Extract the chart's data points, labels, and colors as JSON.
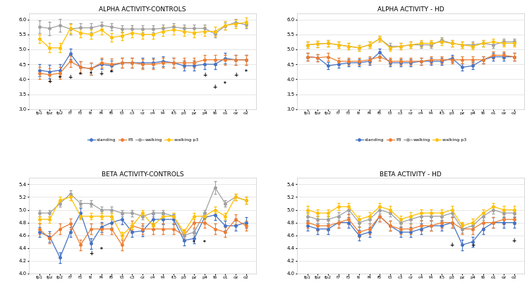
{
  "x_labels": [
    "fp1",
    "fpz",
    "fp2",
    "f7",
    "f3",
    "fz",
    "f4",
    "f8",
    "t3",
    "c3",
    "cz",
    "c4",
    "t4",
    "it5",
    "p3",
    "pz",
    "p4",
    "t6",
    "o1",
    "oz",
    "o2"
  ],
  "titles": [
    "ALPHA ACTIVITY-CONTROLS",
    "ALPHA ACTIVITY - HD",
    "BETA ACTIVITY-CONTROLS",
    "BETA ACTIVITY - HD"
  ],
  "legend_labels": [
    "standing",
    "P3",
    "walking",
    "walking p3"
  ],
  "colors": {
    "standing": "#4472c4",
    "P3": "#ed7d31",
    "walking": "#a0a0a0",
    "walking_p3": "#ffc000"
  },
  "alpha_controls": {
    "standing": [
      4.3,
      4.25,
      4.3,
      4.85,
      4.4,
      4.35,
      4.5,
      4.45,
      4.55,
      4.55,
      4.55,
      4.55,
      4.6,
      4.55,
      4.45,
      4.45,
      4.5,
      4.5,
      4.7,
      4.65,
      4.65
    ],
    "P3": [
      4.2,
      4.15,
      4.2,
      4.6,
      4.4,
      4.35,
      4.55,
      4.5,
      4.55,
      4.55,
      4.5,
      4.5,
      4.55,
      4.55,
      4.55,
      4.55,
      4.65,
      4.65,
      4.65,
      4.65,
      4.65
    ],
    "walking": [
      5.75,
      5.7,
      5.8,
      5.68,
      5.72,
      5.72,
      5.8,
      5.75,
      5.68,
      5.68,
      5.68,
      5.68,
      5.7,
      5.75,
      5.7,
      5.7,
      5.7,
      5.52,
      5.78,
      5.9,
      5.82
    ],
    "walking_p3": [
      5.35,
      5.05,
      5.05,
      5.7,
      5.55,
      5.5,
      5.65,
      5.4,
      5.45,
      5.55,
      5.5,
      5.5,
      5.6,
      5.65,
      5.6,
      5.55,
      5.6,
      5.6,
      5.8,
      5.85,
      5.9
    ],
    "standing_err": [
      0.2,
      0.22,
      0.2,
      0.18,
      0.2,
      0.2,
      0.17,
      0.18,
      0.17,
      0.17,
      0.17,
      0.17,
      0.17,
      0.17,
      0.17,
      0.17,
      0.17,
      0.17,
      0.17,
      0.17,
      0.17
    ],
    "P3_err": [
      0.2,
      0.22,
      0.2,
      0.18,
      0.2,
      0.2,
      0.17,
      0.18,
      0.17,
      0.17,
      0.17,
      0.17,
      0.17,
      0.17,
      0.17,
      0.17,
      0.17,
      0.17,
      0.17,
      0.17,
      0.17
    ],
    "walking_err": [
      0.22,
      0.22,
      0.22,
      0.18,
      0.15,
      0.15,
      0.12,
      0.12,
      0.12,
      0.12,
      0.12,
      0.12,
      0.12,
      0.12,
      0.12,
      0.12,
      0.12,
      0.12,
      0.12,
      0.12,
      0.12
    ],
    "walking_p3_err": [
      0.15,
      0.15,
      0.15,
      0.15,
      0.15,
      0.15,
      0.15,
      0.15,
      0.15,
      0.15,
      0.15,
      0.15,
      0.15,
      0.15,
      0.15,
      0.15,
      0.15,
      0.15,
      0.15,
      0.15,
      0.15
    ],
    "annotations": [
      {
        "xi": 1,
        "y": 3.82,
        "text": "+"
      },
      {
        "xi": 2,
        "y": 3.92,
        "text": "*"
      },
      {
        "xi": 3,
        "y": 3.97,
        "text": "+"
      },
      {
        "xi": 4,
        "y": 4.02,
        "text": "*"
      },
      {
        "xi": 5,
        "y": 4.06,
        "text": "*"
      },
      {
        "xi": 6,
        "y": 4.08,
        "text": "+"
      },
      {
        "xi": 7,
        "y": 4.1,
        "text": "*"
      },
      {
        "xi": 16,
        "y": 4.02,
        "text": "+"
      },
      {
        "xi": 17,
        "y": 3.62,
        "text": "+"
      },
      {
        "xi": 18,
        "y": 3.72,
        "text": "*"
      },
      {
        "xi": 19,
        "y": 4.02,
        "text": "+"
      },
      {
        "xi": 20,
        "y": 4.12,
        "text": "*"
      }
    ]
  },
  "alpha_hd": {
    "standing": [
      4.75,
      4.72,
      4.45,
      4.5,
      4.55,
      4.55,
      4.6,
      4.9,
      4.55,
      4.55,
      4.55,
      4.6,
      4.6,
      4.6,
      4.7,
      4.4,
      4.45,
      4.65,
      4.75,
      4.75,
      4.75
    ],
    "P3": [
      4.75,
      4.72,
      4.75,
      4.6,
      4.6,
      4.6,
      4.65,
      4.75,
      4.6,
      4.6,
      4.6,
      4.6,
      4.65,
      4.65,
      4.65,
      4.65,
      4.65,
      4.65,
      4.8,
      4.8,
      4.75
    ],
    "walking": [
      5.15,
      5.18,
      5.2,
      5.15,
      5.1,
      5.05,
      5.15,
      5.35,
      5.1,
      5.1,
      5.15,
      5.15,
      5.15,
      5.3,
      5.2,
      5.15,
      5.15,
      5.2,
      5.15,
      5.25,
      5.25
    ],
    "walking_p3": [
      5.15,
      5.18,
      5.2,
      5.15,
      5.1,
      5.05,
      5.15,
      5.35,
      5.05,
      5.1,
      5.15,
      5.2,
      5.2,
      5.25,
      5.2,
      5.15,
      5.1,
      5.2,
      5.25,
      5.2,
      5.2
    ],
    "standing_err": [
      0.12,
      0.12,
      0.12,
      0.12,
      0.12,
      0.12,
      0.12,
      0.12,
      0.12,
      0.12,
      0.12,
      0.12,
      0.12,
      0.12,
      0.12,
      0.12,
      0.12,
      0.12,
      0.12,
      0.12,
      0.12
    ],
    "P3_err": [
      0.12,
      0.12,
      0.12,
      0.12,
      0.12,
      0.12,
      0.12,
      0.12,
      0.12,
      0.12,
      0.12,
      0.12,
      0.12,
      0.12,
      0.12,
      0.12,
      0.12,
      0.12,
      0.12,
      0.12,
      0.12
    ],
    "walking_err": [
      0.1,
      0.1,
      0.1,
      0.1,
      0.1,
      0.1,
      0.1,
      0.1,
      0.1,
      0.1,
      0.1,
      0.1,
      0.1,
      0.1,
      0.1,
      0.1,
      0.1,
      0.1,
      0.1,
      0.1,
      0.1
    ],
    "walking_p3_err": [
      0.1,
      0.1,
      0.1,
      0.1,
      0.1,
      0.1,
      0.1,
      0.1,
      0.1,
      0.1,
      0.1,
      0.1,
      0.1,
      0.1,
      0.1,
      0.1,
      0.1,
      0.1,
      0.1,
      0.1,
      0.1
    ],
    "annotations": []
  },
  "beta_controls": {
    "standing": [
      4.65,
      4.58,
      4.25,
      4.65,
      4.95,
      4.47,
      4.73,
      4.8,
      4.85,
      4.65,
      4.67,
      4.85,
      4.85,
      4.85,
      4.52,
      4.55,
      4.88,
      4.92,
      4.75,
      4.75,
      4.8
    ],
    "P3": [
      4.7,
      4.55,
      4.7,
      4.78,
      4.45,
      4.7,
      4.7,
      4.7,
      4.45,
      4.75,
      4.7,
      4.7,
      4.7,
      4.7,
      4.6,
      4.8,
      4.8,
      4.7,
      4.65,
      4.85,
      4.75
    ],
    "walking": [
      4.95,
      4.95,
      5.1,
      5.25,
      5.1,
      5.1,
      5.0,
      5.0,
      4.95,
      4.95,
      4.9,
      4.95,
      4.95,
      4.9,
      4.6,
      4.65,
      4.95,
      5.35,
      5.1,
      5.2,
      5.15
    ],
    "walking_p3": [
      4.85,
      4.85,
      5.15,
      5.2,
      4.9,
      4.9,
      4.9,
      4.9,
      4.6,
      4.75,
      4.95,
      4.75,
      4.9,
      4.9,
      4.65,
      4.9,
      4.9,
      5.0,
      4.9,
      5.2,
      5.15
    ],
    "standing_err": [
      0.08,
      0.08,
      0.08,
      0.08,
      0.08,
      0.08,
      0.08,
      0.08,
      0.08,
      0.08,
      0.08,
      0.08,
      0.08,
      0.08,
      0.08,
      0.08,
      0.08,
      0.08,
      0.08,
      0.08,
      0.08
    ],
    "P3_err": [
      0.08,
      0.08,
      0.08,
      0.08,
      0.08,
      0.08,
      0.08,
      0.08,
      0.08,
      0.08,
      0.08,
      0.08,
      0.08,
      0.08,
      0.08,
      0.08,
      0.08,
      0.08,
      0.08,
      0.08,
      0.08
    ],
    "walking_err": [
      0.05,
      0.05,
      0.05,
      0.05,
      0.05,
      0.05,
      0.05,
      0.05,
      0.05,
      0.05,
      0.05,
      0.05,
      0.05,
      0.05,
      0.05,
      0.05,
      0.05,
      0.1,
      0.05,
      0.05,
      0.05
    ],
    "walking_p3_err": [
      0.05,
      0.05,
      0.05,
      0.05,
      0.05,
      0.05,
      0.05,
      0.05,
      0.05,
      0.05,
      0.05,
      0.05,
      0.05,
      0.05,
      0.05,
      0.05,
      0.05,
      0.05,
      0.05,
      0.05,
      0.05
    ],
    "annotations": [
      {
        "xi": 5,
        "y": 4.26,
        "text": "+"
      },
      {
        "xi": 6,
        "y": 4.32,
        "text": "*"
      },
      {
        "xi": 15,
        "y": 4.43,
        "text": "*"
      },
      {
        "xi": 16,
        "y": 4.43,
        "text": "*"
      },
      {
        "xi": 20,
        "y": 4.68,
        "text": "*"
      }
    ]
  },
  "beta_hd": {
    "standing": [
      4.75,
      4.7,
      4.7,
      4.8,
      4.8,
      4.6,
      4.65,
      4.9,
      4.75,
      4.65,
      4.65,
      4.7,
      4.75,
      4.75,
      4.8,
      4.45,
      4.5,
      4.7,
      4.8,
      4.8,
      4.8
    ],
    "P3": [
      4.8,
      4.75,
      4.75,
      4.8,
      4.85,
      4.65,
      4.7,
      4.9,
      4.75,
      4.7,
      4.7,
      4.75,
      4.75,
      4.8,
      4.8,
      4.7,
      4.7,
      4.8,
      4.8,
      4.85,
      4.85
    ],
    "walking": [
      4.9,
      4.85,
      4.85,
      4.9,
      5.0,
      4.8,
      4.85,
      5.0,
      4.95,
      4.8,
      4.85,
      4.9,
      4.9,
      4.9,
      4.95,
      4.7,
      4.75,
      4.9,
      5.0,
      4.95,
      4.95
    ],
    "walking_p3": [
      5.0,
      4.95,
      4.95,
      5.05,
      5.05,
      4.85,
      4.9,
      5.05,
      5.0,
      4.85,
      4.9,
      4.95,
      4.95,
      4.95,
      5.0,
      4.75,
      4.8,
      4.95,
      5.05,
      5.0,
      5.0
    ],
    "standing_err": [
      0.08,
      0.08,
      0.08,
      0.08,
      0.08,
      0.08,
      0.08,
      0.08,
      0.08,
      0.08,
      0.08,
      0.08,
      0.08,
      0.08,
      0.08,
      0.08,
      0.08,
      0.08,
      0.08,
      0.08,
      0.08
    ],
    "P3_err": [
      0.08,
      0.08,
      0.08,
      0.08,
      0.08,
      0.08,
      0.08,
      0.08,
      0.08,
      0.08,
      0.08,
      0.08,
      0.08,
      0.08,
      0.08,
      0.08,
      0.08,
      0.08,
      0.08,
      0.08,
      0.08
    ],
    "walking_err": [
      0.06,
      0.06,
      0.06,
      0.06,
      0.06,
      0.06,
      0.06,
      0.06,
      0.06,
      0.06,
      0.06,
      0.06,
      0.06,
      0.06,
      0.06,
      0.06,
      0.06,
      0.06,
      0.06,
      0.06,
      0.06
    ],
    "walking_p3_err": [
      0.06,
      0.06,
      0.06,
      0.06,
      0.06,
      0.06,
      0.06,
      0.06,
      0.06,
      0.06,
      0.06,
      0.06,
      0.06,
      0.06,
      0.06,
      0.06,
      0.06,
      0.06,
      0.06,
      0.06,
      0.06
    ],
    "annotations": [
      {
        "xi": 14,
        "y": 4.4,
        "text": "+"
      },
      {
        "xi": 16,
        "y": 4.4,
        "text": "+"
      },
      {
        "xi": 20,
        "y": 4.46,
        "text": "+"
      }
    ]
  },
  "ylim_alpha": [
    3.0,
    6.2
  ],
  "yticks_alpha": [
    3.0,
    3.5,
    4.0,
    4.5,
    5.0,
    5.5,
    6.0
  ],
  "ylim_beta": [
    4.0,
    5.5
  ],
  "yticks_beta": [
    4.0,
    4.2,
    4.4,
    4.6,
    4.8,
    5.0,
    5.2,
    5.4
  ],
  "bg_color": "#ffffff",
  "grid_color": "#dddddd"
}
